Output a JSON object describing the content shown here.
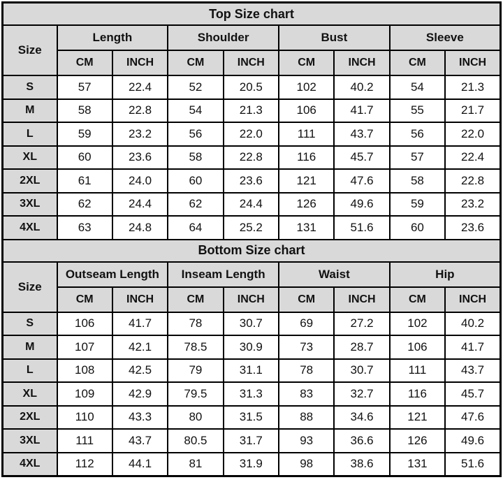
{
  "colors": {
    "header_bg": "#d9d9d9",
    "cell_bg": "#ffffff",
    "border": "#000000",
    "text": "#111111"
  },
  "chart_data": [
    {
      "type": "table",
      "title": "Top Size chart",
      "size_label": "Size",
      "groups": [
        "Length",
        "Shoulder",
        "Bust",
        "Sleeve"
      ],
      "units": [
        "CM",
        "INCH"
      ],
      "rows": [
        {
          "size": "S",
          "values": [
            "57",
            "22.4",
            "52",
            "20.5",
            "102",
            "40.2",
            "54",
            "21.3"
          ]
        },
        {
          "size": "M",
          "values": [
            "58",
            "22.8",
            "54",
            "21.3",
            "106",
            "41.7",
            "55",
            "21.7"
          ]
        },
        {
          "size": "L",
          "values": [
            "59",
            "23.2",
            "56",
            "22.0",
            "111",
            "43.7",
            "56",
            "22.0"
          ]
        },
        {
          "size": "XL",
          "values": [
            "60",
            "23.6",
            "58",
            "22.8",
            "116",
            "45.7",
            "57",
            "22.4"
          ]
        },
        {
          "size": "2XL",
          "values": [
            "61",
            "24.0",
            "60",
            "23.6",
            "121",
            "47.6",
            "58",
            "22.8"
          ]
        },
        {
          "size": "3XL",
          "values": [
            "62",
            "24.4",
            "62",
            "24.4",
            "126",
            "49.6",
            "59",
            "23.2"
          ]
        },
        {
          "size": "4XL",
          "values": [
            "63",
            "24.8",
            "64",
            "25.2",
            "131",
            "51.6",
            "60",
            "23.6"
          ]
        }
      ]
    },
    {
      "type": "table",
      "title": "Bottom Size chart",
      "size_label": "Size",
      "groups": [
        "Outseam Length",
        "Inseam Length",
        "Waist",
        "Hip"
      ],
      "units": [
        "CM",
        "INCH"
      ],
      "rows": [
        {
          "size": "S",
          "values": [
            "106",
            "41.7",
            "78",
            "30.7",
            "69",
            "27.2",
            "102",
            "40.2"
          ]
        },
        {
          "size": "M",
          "values": [
            "107",
            "42.1",
            "78.5",
            "30.9",
            "73",
            "28.7",
            "106",
            "41.7"
          ]
        },
        {
          "size": "L",
          "values": [
            "108",
            "42.5",
            "79",
            "31.1",
            "78",
            "30.7",
            "111",
            "43.7"
          ]
        },
        {
          "size": "XL",
          "values": [
            "109",
            "42.9",
            "79.5",
            "31.3",
            "83",
            "32.7",
            "116",
            "45.7"
          ]
        },
        {
          "size": "2XL",
          "values": [
            "110",
            "43.3",
            "80",
            "31.5",
            "88",
            "34.6",
            "121",
            "47.6"
          ]
        },
        {
          "size": "3XL",
          "values": [
            "111",
            "43.7",
            "80.5",
            "31.7",
            "93",
            "36.6",
            "126",
            "49.6"
          ]
        },
        {
          "size": "4XL",
          "values": [
            "112",
            "44.1",
            "81",
            "31.9",
            "98",
            "38.6",
            "131",
            "51.6"
          ]
        }
      ]
    }
  ]
}
